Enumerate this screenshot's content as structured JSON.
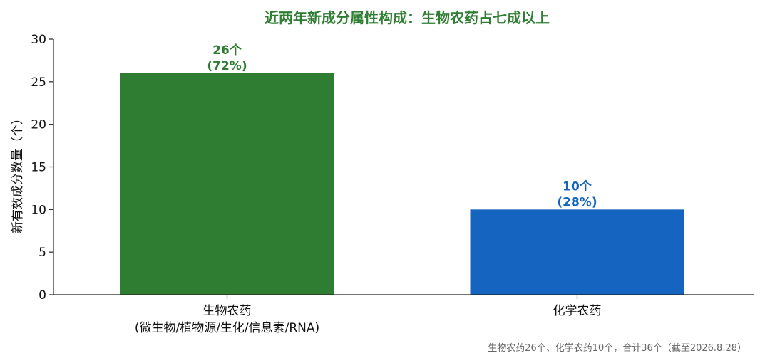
{
  "colors": {
    "title": "#2e7d32",
    "bio": "#2e7d32",
    "chem": "#1565c0",
    "axis": "#222222",
    "footnote": "#666666"
  },
  "chart_data": {
    "type": "bar",
    "title": "近两年新成分属性构成：生物农药占七成以上",
    "ylabel": "新有效成分数量（个）",
    "xlabel": "",
    "ylim": [
      0,
      30
    ],
    "yticks": [
      "0",
      "5",
      "10",
      "15",
      "20",
      "25",
      "30"
    ],
    "categories": [
      {
        "line1": "生物农药",
        "line2": "(微生物/植物源/生化/信息素/RNA)"
      },
      {
        "line1": "化学农药",
        "line2": ""
      }
    ],
    "values": [
      26,
      10
    ],
    "data_labels": [
      {
        "count": "26个",
        "pct": "(72%)"
      },
      {
        "count": "10个",
        "pct": "(28%)"
      }
    ],
    "grid": false,
    "footnote": "生物农药26个、化学农药10个，合计36个（截至2026.8.28）"
  }
}
